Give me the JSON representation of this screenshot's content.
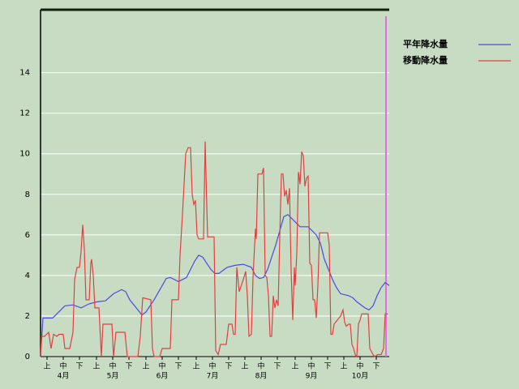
{
  "chart_data": {
    "type": "line",
    "background": "#c8dcc4",
    "grid": true,
    "grid_color": "#ffffff",
    "legend": "right",
    "xlim": [
      0,
      215
    ],
    "ylim": [
      0,
      17.1
    ],
    "yticks": [
      0,
      2,
      4,
      6,
      8,
      10,
      12,
      14
    ],
    "xticks": [
      {
        "value": 4,
        "label": "上"
      },
      {
        "value": 14,
        "label": "中"
      },
      {
        "value": 24,
        "label": "下"
      },
      {
        "value": 34.5,
        "label": "上"
      },
      {
        "value": 44.5,
        "label": "中"
      },
      {
        "value": 54.5,
        "label": "下"
      },
      {
        "value": 65,
        "label": "上"
      },
      {
        "value": 75,
        "label": "中"
      },
      {
        "value": 85,
        "label": "下"
      },
      {
        "value": 96,
        "label": "上"
      },
      {
        "value": 106,
        "label": "中"
      },
      {
        "value": 116,
        "label": "下"
      },
      {
        "value": 126,
        "label": "上"
      },
      {
        "value": 136,
        "label": "中"
      },
      {
        "value": 146,
        "label": "下"
      },
      {
        "value": 157,
        "label": "上"
      },
      {
        "value": 167,
        "label": "中"
      },
      {
        "value": 177,
        "label": "下"
      },
      {
        "value": 187,
        "label": "上"
      },
      {
        "value": 197,
        "label": "中"
      },
      {
        "value": 207,
        "label": "下"
      }
    ],
    "month_ticks": [
      {
        "value": 14,
        "label": "4月"
      },
      {
        "value": 44.5,
        "label": "5月"
      },
      {
        "value": 75,
        "label": "6月"
      },
      {
        "value": 106,
        "label": "7月"
      },
      {
        "value": 136,
        "label": "8月"
      },
      {
        "value": 167,
        "label": "9月"
      },
      {
        "value": 197,
        "label": "10月"
      }
    ],
    "today_line": {
      "x": 213,
      "color": "#e070e8"
    },
    "series": [
      {
        "name": "平年降水量",
        "color": "#4a4ae0",
        "x": [
          0,
          1.5,
          7.5,
          10,
          15,
          20,
          25,
          30,
          35,
          40,
          45,
          50,
          52.5,
          55,
          60,
          62.5,
          65,
          70,
          75,
          77.5,
          80,
          85,
          90,
          95,
          97.5,
          100,
          105,
          107.5,
          110,
          115,
          120,
          125,
          130,
          132.5,
          135,
          137.5,
          140,
          145,
          150,
          152.5,
          155,
          160,
          165,
          170,
          172.5,
          175,
          180,
          182.5,
          185,
          190,
          192.5,
          195,
          200,
          202.5,
          205,
          207.5,
          210,
          212.5,
          215
        ],
        "values": [
          0,
          1.9,
          1.9,
          2.1,
          2.5,
          2.55,
          2.4,
          2.6,
          2.7,
          2.75,
          3.1,
          3.3,
          3.2,
          2.8,
          2.3,
          2.05,
          2.2,
          2.8,
          3.5,
          3.85,
          3.9,
          3.7,
          3.9,
          4.7,
          5.0,
          4.9,
          4.3,
          4.1,
          4.1,
          4.4,
          4.5,
          4.55,
          4.4,
          4.0,
          3.85,
          3.9,
          4.3,
          5.5,
          6.9,
          7.0,
          6.8,
          6.4,
          6.4,
          6.0,
          5.6,
          4.8,
          3.8,
          3.4,
          3.1,
          3.0,
          2.9,
          2.7,
          2.4,
          2.3,
          2.5,
          3.0,
          3.4,
          3.65,
          3.5
        ]
      },
      {
        "name": "移動降水量",
        "color": "#e04040",
        "x": [
          0,
          0.5,
          2.5,
          5,
          6.5,
          8,
          10,
          11.5,
          14,
          15,
          18,
          20,
          21,
          22.5,
          24,
          25,
          26,
          27,
          28,
          30,
          31,
          31.5,
          32.5,
          33.5,
          36,
          37.5,
          38.5,
          44,
          45,
          46.5,
          52,
          53.5,
          60,
          61.5,
          63,
          68,
          69,
          70,
          73.5,
          75,
          80,
          81,
          85,
          86,
          87.5,
          89.5,
          91,
          92.5,
          93.5,
          94.5,
          95.5,
          96.5,
          97.5,
          100.5,
          101.5,
          103,
          107,
          108,
          109.5,
          111,
          114.5,
          116,
          118,
          119,
          120,
          121,
          122.5,
          125,
          126.5,
          127.5,
          128.5,
          130,
          131,
          132.5,
          133,
          134,
          136.5,
          137.5,
          138.5,
          139.5,
          140.5,
          141.5,
          142.5,
          143.5,
          144.5,
          145.5,
          146.5,
          147.5,
          148.5,
          149.5,
          150.5,
          151.5,
          152.5,
          153.5,
          154.5,
          155.5,
          156.5,
          157,
          158,
          159,
          160,
          161,
          162,
          163,
          164,
          165,
          166,
          167,
          168,
          169,
          170,
          171,
          172,
          177,
          178,
          179,
          180,
          181,
          183,
          185,
          186.5,
          187.5,
          188.5,
          190,
          191,
          192,
          193,
          194,
          195,
          196,
          197,
          198,
          202,
          203,
          205,
          206,
          208,
          210,
          211.5,
          212.5,
          214
        ],
        "values": [
          0,
          1.0,
          1.0,
          1.2,
          0.4,
          1.1,
          1.0,
          1.1,
          1.1,
          0.4,
          0.4,
          1.2,
          3.8,
          4.4,
          4.4,
          5.2,
          6.5,
          5.3,
          2.8,
          2.8,
          4.6,
          4.8,
          4.0,
          2.4,
          2.4,
          0,
          1.6,
          1.6,
          0,
          1.2,
          1.2,
          0,
          0,
          1.0,
          2.9,
          2.8,
          0.4,
          0,
          0,
          0.4,
          0.4,
          2.8,
          2.8,
          5.0,
          7.0,
          10.0,
          10.3,
          10.3,
          8.0,
          7.5,
          7.7,
          6.0,
          5.8,
          5.8,
          10.6,
          5.9,
          5.9,
          0.3,
          0.1,
          0.6,
          0.6,
          1.6,
          1.6,
          1.1,
          1.1,
          4.4,
          3.2,
          3.8,
          4.2,
          3.0,
          1.0,
          1.1,
          3.9,
          6.3,
          5.8,
          9.0,
          9.0,
          9.3,
          4.0,
          3.9,
          3.0,
          1.0,
          1.0,
          3.0,
          2.4,
          2.8,
          2.5,
          5.9,
          9.0,
          9.0,
          7.9,
          8.2,
          7.5,
          8.3,
          4.2,
          1.8,
          4.4,
          3.5,
          5.1,
          9.1,
          8.5,
          10.1,
          9.9,
          8.4,
          8.8,
          8.9,
          4.6,
          4.5,
          2.8,
          2.8,
          1.9,
          3.5,
          6.1,
          6.1,
          5.5,
          1.1,
          1.1,
          1.6,
          1.8,
          2.0,
          2.3,
          1.7,
          1.5,
          1.6,
          1.6,
          0.6,
          0.4,
          0.1,
          0,
          1.6,
          1.8,
          2.1,
          2.1,
          0.4,
          0.1,
          0,
          0.1,
          0.1,
          0.4,
          2.1,
          2.1
        ]
      }
    ]
  }
}
